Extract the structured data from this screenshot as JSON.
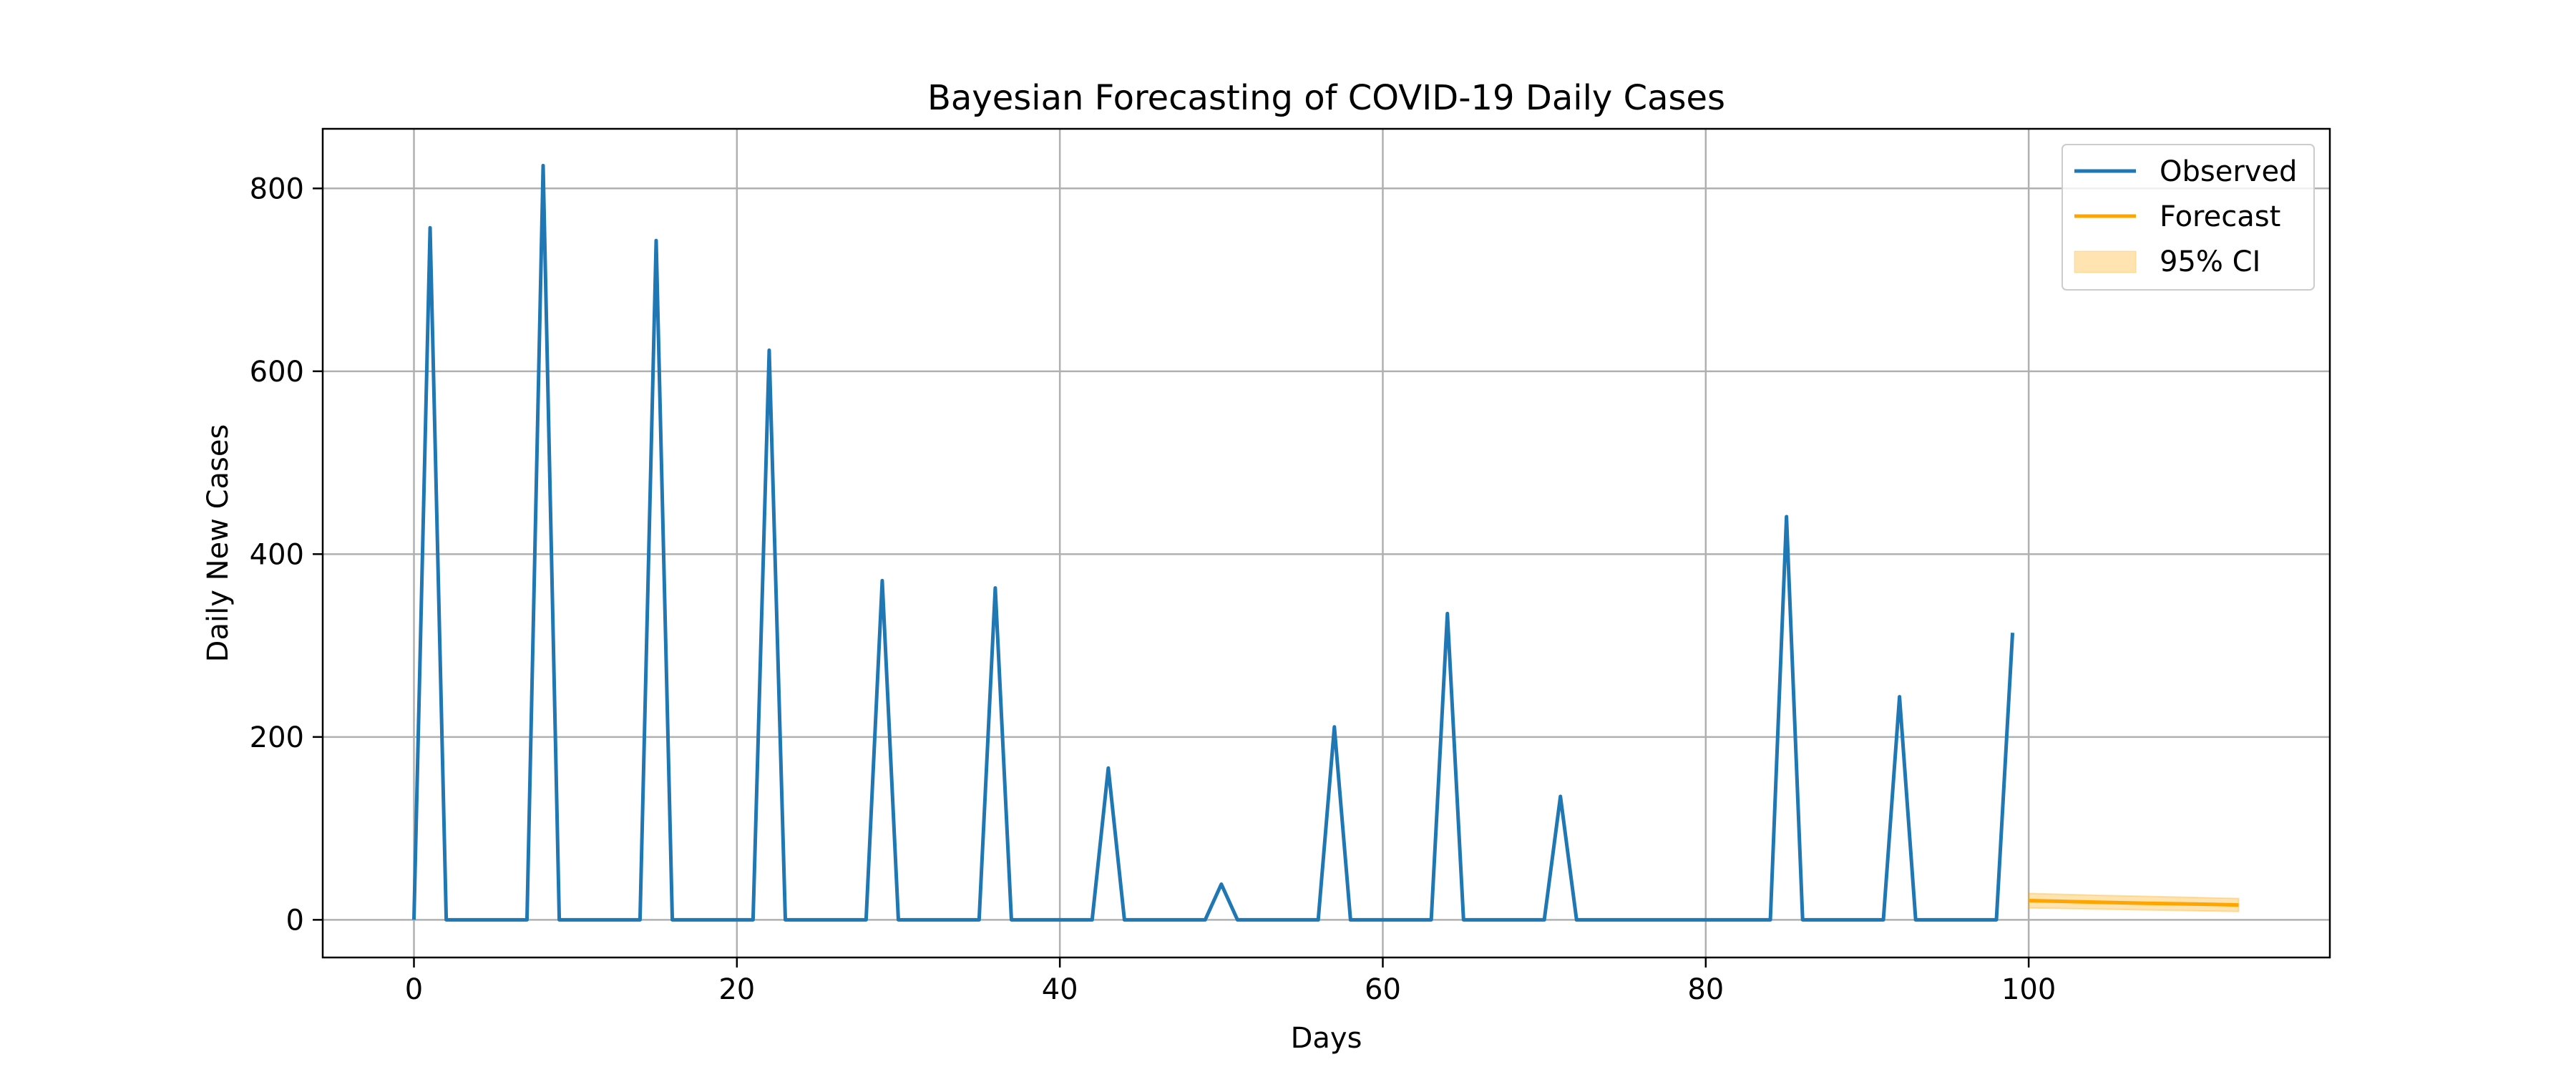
{
  "chart_data": {
    "type": "line",
    "title": "Bayesian Forecasting of COVID-19 Daily Cases",
    "xlabel": "Days",
    "ylabel": "Daily New Cases",
    "xlim": [
      -5.65,
      118.65
    ],
    "ylim": [
      -41.2,
      865.2
    ],
    "xticks": [
      0,
      20,
      40,
      60,
      80,
      100
    ],
    "yticks": [
      0,
      200,
      400,
      600,
      800
    ],
    "grid": true,
    "legend_position": "top-right",
    "series": [
      {
        "name": "Observed",
        "color": "#1f77b4",
        "x": [
          0,
          1,
          2,
          3,
          4,
          5,
          6,
          7,
          8,
          9,
          10,
          11,
          12,
          13,
          14,
          15,
          16,
          17,
          18,
          19,
          20,
          21,
          22,
          23,
          24,
          25,
          26,
          27,
          28,
          29,
          30,
          31,
          32,
          33,
          34,
          35,
          36,
          37,
          38,
          39,
          40,
          41,
          42,
          43,
          44,
          45,
          46,
          47,
          48,
          49,
          50,
          51,
          52,
          53,
          54,
          55,
          56,
          57,
          58,
          59,
          60,
          61,
          62,
          63,
          64,
          65,
          66,
          67,
          68,
          69,
          70,
          71,
          72,
          73,
          74,
          75,
          76,
          77,
          78,
          79,
          80,
          81,
          82,
          83,
          84,
          85,
          86,
          87,
          88,
          89,
          90,
          91,
          92,
          93,
          94,
          95,
          96,
          97,
          98,
          99
        ],
        "y": [
          0,
          757,
          0,
          0,
          0,
          0,
          0,
          0,
          825,
          0,
          0,
          0,
          0,
          0,
          0,
          743,
          0,
          0,
          0,
          0,
          0,
          0,
          623,
          0,
          0,
          0,
          0,
          0,
          0,
          371,
          0,
          0,
          0,
          0,
          0,
          0,
          363,
          0,
          0,
          0,
          0,
          0,
          0,
          166,
          0,
          0,
          0,
          0,
          0,
          0,
          39,
          0,
          0,
          0,
          0,
          0,
          0,
          211,
          0,
          0,
          0,
          0,
          0,
          0,
          335,
          0,
          0,
          0,
          0,
          0,
          0,
          135,
          0,
          0,
          0,
          0,
          0,
          0,
          0,
          0,
          0,
          0,
          0,
          0,
          0,
          441,
          0,
          0,
          0,
          0,
          0,
          0,
          244,
          0,
          0,
          0,
          0,
          0,
          0,
          314
        ]
      },
      {
        "name": "Forecast",
        "color": "#ffa500",
        "x": [
          100,
          101,
          102,
          103,
          104,
          105,
          106,
          107,
          108,
          109,
          110,
          111,
          112,
          113
        ],
        "y": [
          21,
          20.6,
          20.2,
          19.8,
          19.4,
          19.0,
          18.6,
          18.2,
          17.9,
          17.6,
          17.3,
          17.0,
          16.6,
          16.2
        ]
      }
    ],
    "ci": {
      "name": "95% CI",
      "color": "#ffa500",
      "x": [
        100,
        101,
        102,
        103,
        104,
        105,
        106,
        107,
        108,
        109,
        110,
        111,
        112,
        113
      ],
      "lower": [
        13,
        12.7,
        12.4,
        12.1,
        11.8,
        11.5,
        11.2,
        10.9,
        10.6,
        10.3,
        10.0,
        9.7,
        9.4,
        9.1
      ],
      "upper": [
        29,
        28.5,
        28.0,
        27.5,
        27.0,
        26.6,
        26.2,
        25.8,
        25.4,
        25.0,
        24.6,
        24.2,
        23.8,
        23.4
      ]
    }
  }
}
